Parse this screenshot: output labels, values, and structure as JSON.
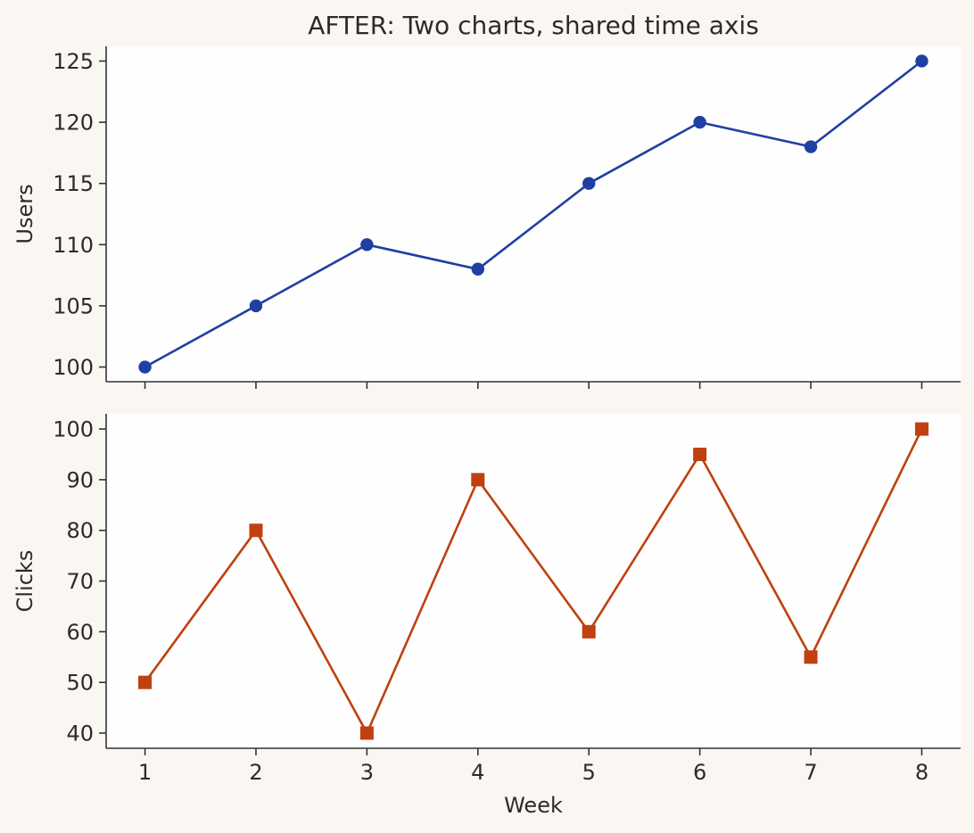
{
  "chart_title": "AFTER: Two charts, shared time axis",
  "colors": {
    "background": "#faf7f2",
    "plot_background": "#fefefe",
    "axis": "#333333",
    "text": "#2b2b2b"
  },
  "chart_data": [
    {
      "type": "line",
      "title": "AFTER: Two charts, shared time axis",
      "xlabel": "",
      "ylabel": "Users",
      "x": [
        1,
        2,
        3,
        4,
        5,
        6,
        7,
        8
      ],
      "xticks": [
        "1",
        "2",
        "3",
        "4",
        "5",
        "6",
        "7",
        "8"
      ],
      "show_x_tick_labels": false,
      "ylim": [
        98.8,
        126.2
      ],
      "yticks": [
        100,
        105,
        110,
        115,
        120,
        125
      ],
      "grid": false,
      "series": [
        {
          "values": [
            100,
            105,
            110,
            108,
            115,
            120,
            118,
            125
          ],
          "color": "#1f3fa3",
          "marker": "circle"
        }
      ]
    },
    {
      "type": "line",
      "title": "",
      "xlabel": "Week",
      "ylabel": "Clicks",
      "x": [
        1,
        2,
        3,
        4,
        5,
        6,
        7,
        8
      ],
      "xticks": [
        "1",
        "2",
        "3",
        "4",
        "5",
        "6",
        "7",
        "8"
      ],
      "show_x_tick_labels": true,
      "ylim": [
        37,
        103
      ],
      "yticks": [
        40,
        50,
        60,
        70,
        80,
        90,
        100
      ],
      "grid": false,
      "series": [
        {
          "values": [
            50,
            80,
            40,
            90,
            60,
            95,
            55,
            100
          ],
          "color": "#c0400f",
          "marker": "square"
        }
      ]
    }
  ]
}
